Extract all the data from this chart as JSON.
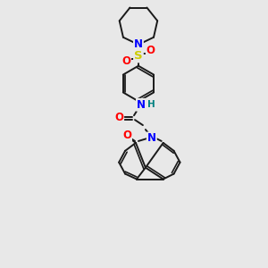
{
  "bg_color": "#e8e8e8",
  "line_color": "#1a1a1a",
  "lw": 1.4,
  "atom_colors": {
    "N": "#0000ff",
    "O": "#ff0000",
    "S": "#cccc00",
    "H": "#008080"
  },
  "fontsize": 8.5
}
